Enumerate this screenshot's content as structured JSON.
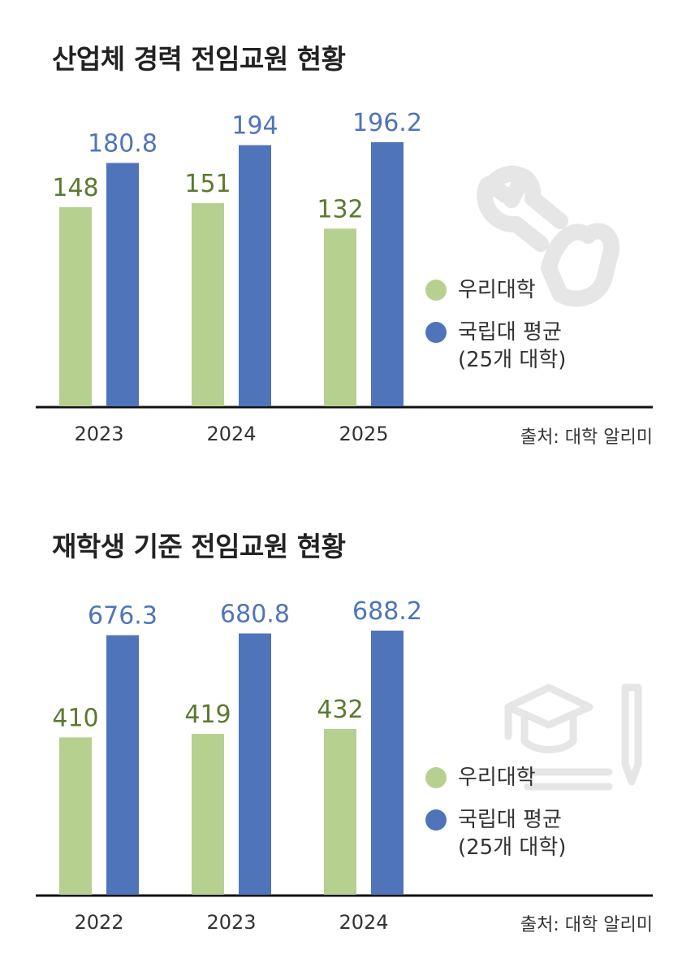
{
  "colors": {
    "ours": "#b6d090",
    "national": "#4f74ba",
    "ours_label": "#5b7a2e",
    "national_label": "#4f74ba",
    "axis": "#111111",
    "icon": "#e6e6e6"
  },
  "chart_data": [
    {
      "type": "bar",
      "title": "산업체 경력 전임교원 현황",
      "categories": [
        "2023",
        "2024",
        "2025"
      ],
      "series": [
        {
          "name": "우리대학",
          "values": [
            148,
            151,
            132
          ]
        },
        {
          "name": "국립대 평균",
          "name_sub": "(25개 대학)",
          "values": [
            180.8,
            194,
            196.2
          ]
        }
      ],
      "value_labels": [
        [
          "148",
          "151",
          "132"
        ],
        [
          "180.8",
          "194",
          "196.2"
        ]
      ],
      "ylim": [
        0,
        220
      ],
      "legend": "right",
      "grid": false,
      "source": "출처: 대학 알리미",
      "icon": "wrench-hand-icon"
    },
    {
      "type": "bar",
      "title": "재학생 기준 전임교원 현황",
      "categories": [
        "2022",
        "2023",
        "2024"
      ],
      "series": [
        {
          "name": "우리대학",
          "values": [
            410,
            419,
            432
          ]
        },
        {
          "name": "국립대 평균",
          "name_sub": "(25개 대학)",
          "values": [
            676.3,
            680.8,
            688.2
          ]
        }
      ],
      "value_labels": [
        [
          "410",
          "419",
          "432"
        ],
        [
          "676.3",
          "680.8",
          "688.2"
        ]
      ],
      "ylim": [
        0,
        770
      ],
      "legend": "right",
      "grid": false,
      "source": "출처: 대학 알리미",
      "icon": "graduation-cap-pencil-icon"
    }
  ]
}
